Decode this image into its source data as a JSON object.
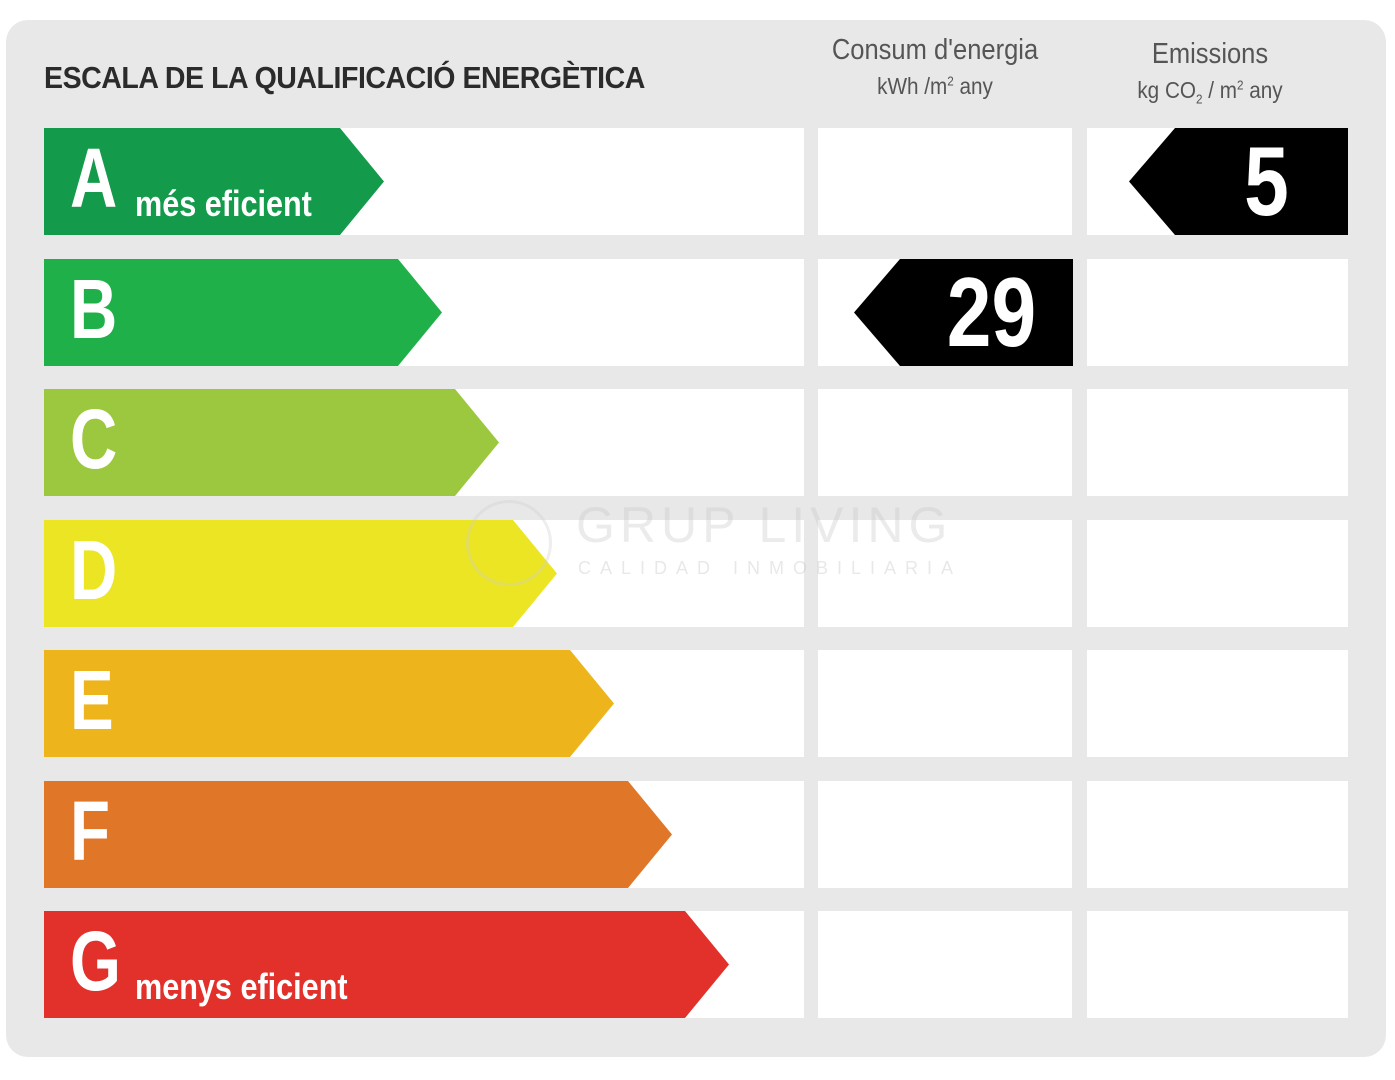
{
  "title": "ESCALA DE LA QUALIFICACIÓ ENERGÈTICA",
  "columns": {
    "consumption": {
      "heading": "Consum d'energia",
      "unit_a": "kWh /m",
      "unit_sup": "2",
      "unit_b": " any"
    },
    "emissions": {
      "heading": "Emissions",
      "unit_a": "kg CO",
      "unit_sub": "2",
      "unit_mid": " / m",
      "unit_sup": "2",
      "unit_b": " any"
    }
  },
  "classes": [
    {
      "letter": "A",
      "label": "més eficient",
      "color": "#139a4a"
    },
    {
      "letter": "B",
      "label": "",
      "color": "#1fb04a"
    },
    {
      "letter": "C",
      "label": "",
      "color": "#9bc83e"
    },
    {
      "letter": "D",
      "label": "",
      "color": "#ebe524"
    },
    {
      "letter": "E",
      "label": "",
      "color": "#eeb41c"
    },
    {
      "letter": "F",
      "label": "",
      "color": "#e07628"
    },
    {
      "letter": "G",
      "label": "menys eficient",
      "color": "#e2302b"
    }
  ],
  "ratings": {
    "consumption": {
      "value": "29",
      "class": "B"
    },
    "emissions": {
      "value": "5",
      "class": "A"
    }
  },
  "watermark": {
    "name": "GRUP LIVING",
    "tagline": "CALIDAD INMOBILIARIA"
  }
}
